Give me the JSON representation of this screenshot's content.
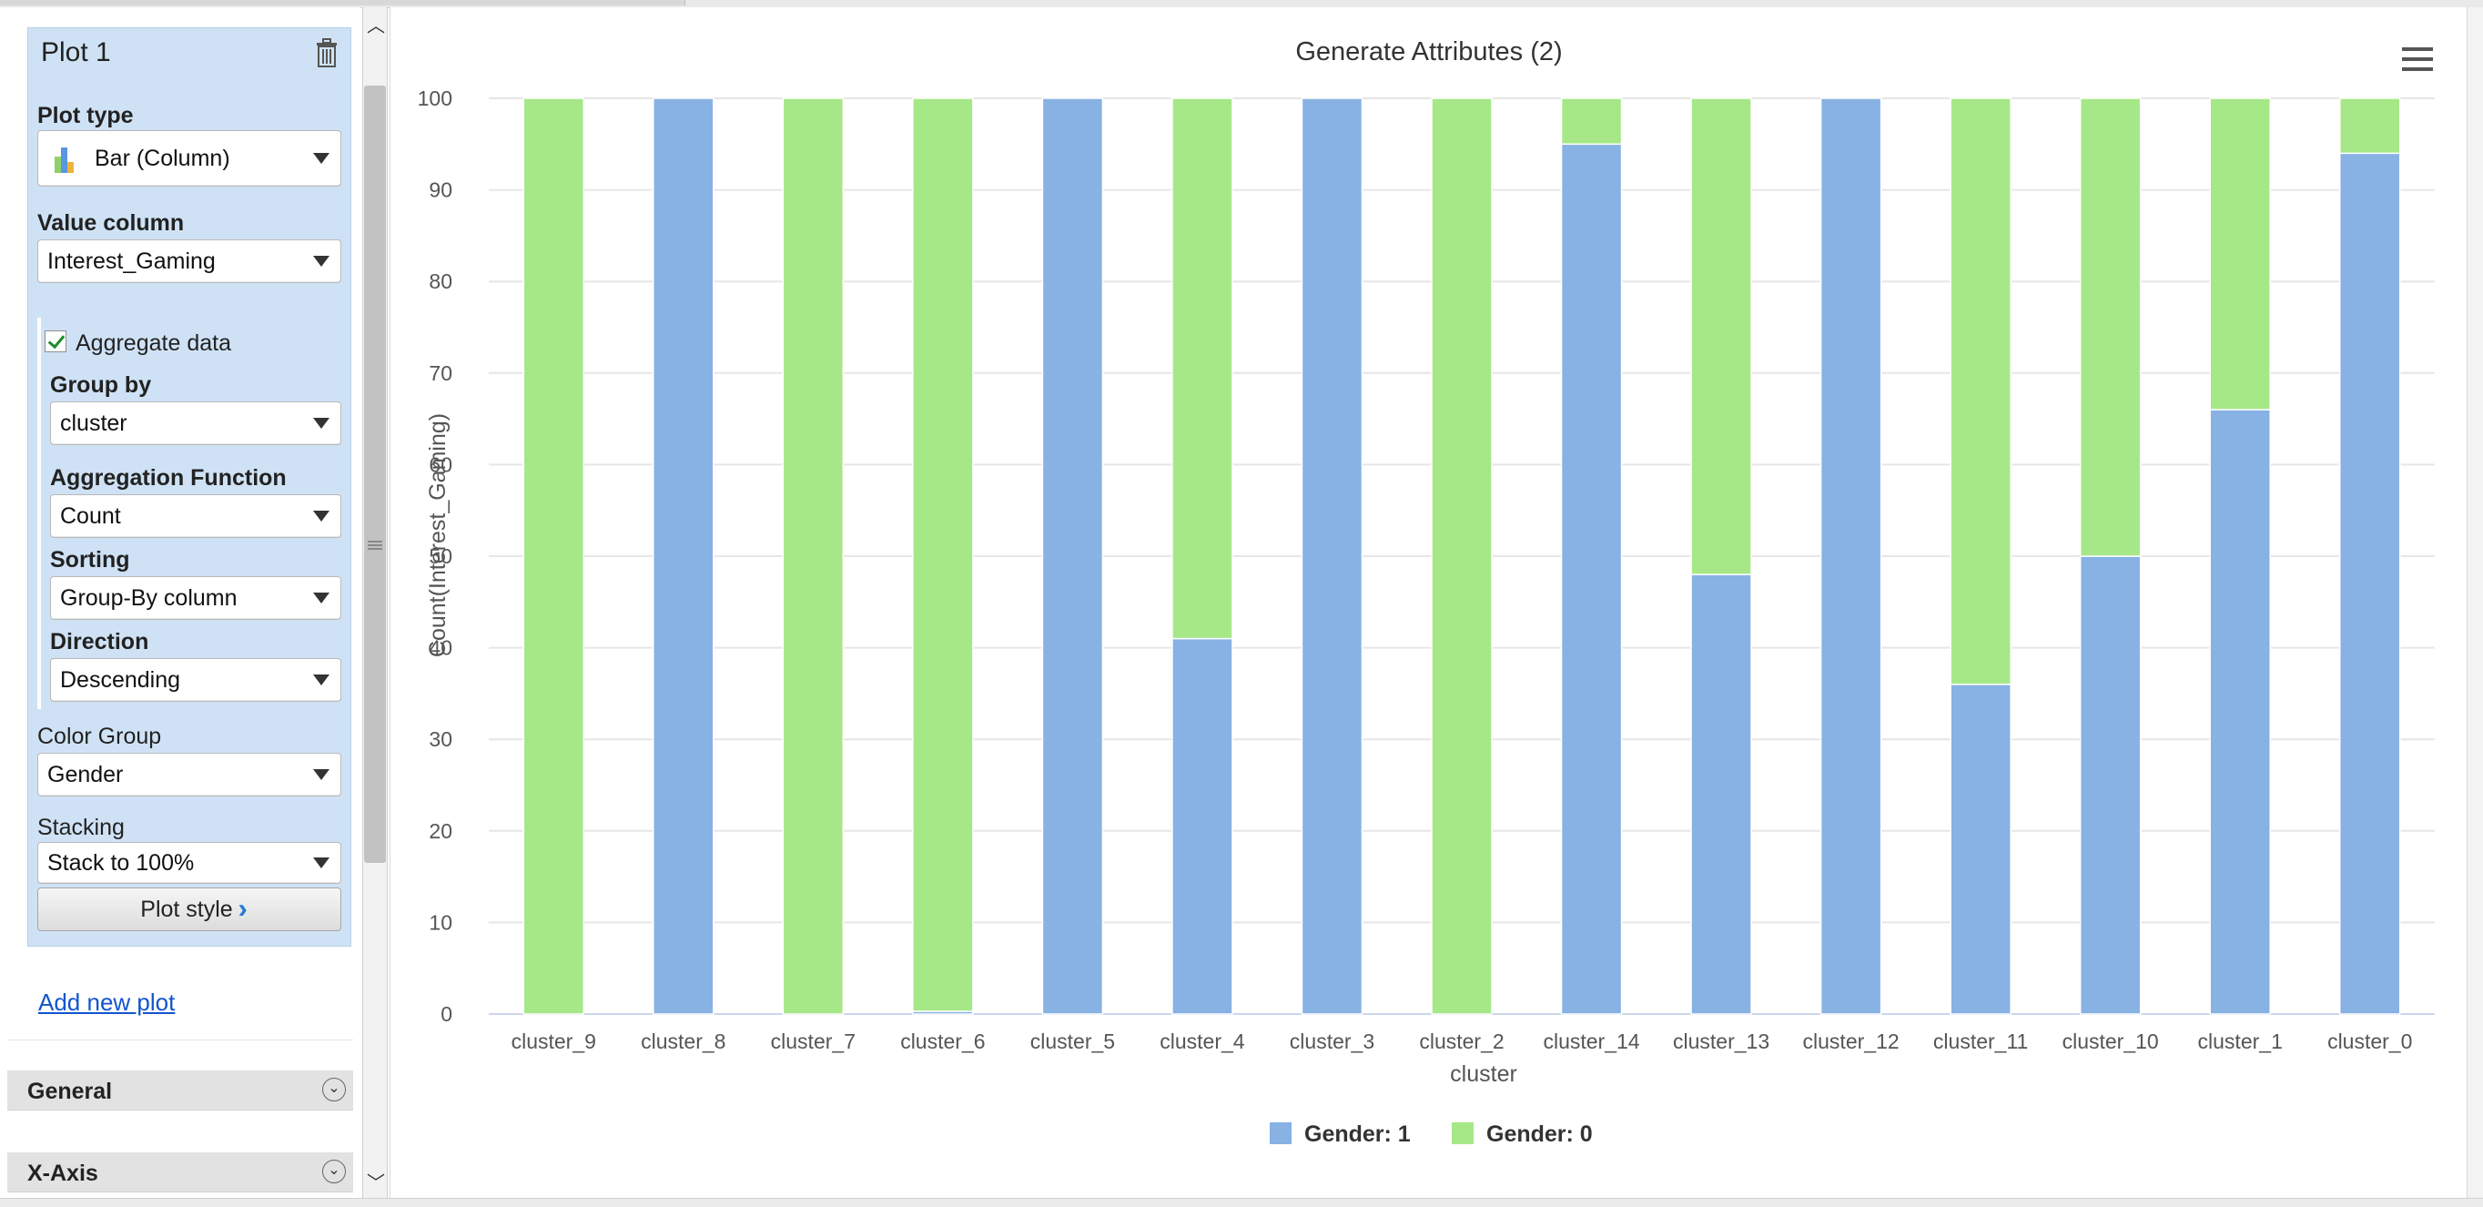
{
  "plot_panel": {
    "title": "Plot 1",
    "plot_type_label": "Plot type",
    "plot_type_value": "Bar (Column)",
    "value_column_label": "Value column",
    "value_column_value": "Interest_Gaming",
    "aggregate_label": "Aggregate data",
    "aggregate_checked": true,
    "group_by_label": "Group by",
    "group_by_value": "cluster",
    "agg_function_label": "Aggregation Function",
    "agg_function_value": "Count",
    "sorting_label": "Sorting",
    "sorting_value": "Group-By column",
    "direction_label": "Direction",
    "direction_value": "Descending",
    "color_group_label": "Color Group",
    "color_group_value": "Gender",
    "stacking_label": "Stacking",
    "stacking_value": "Stack to 100%",
    "plot_style_label": "Plot style"
  },
  "add_new_plot_label": "Add new plot",
  "sections": {
    "general": "General",
    "x_axis": "X-Axis"
  },
  "icons": {
    "trash": "trash-icon",
    "menu": "hamburger-menu-icon",
    "collapse": "collapse-double-chevron-icon"
  },
  "chart_data": {
    "type": "bar",
    "stacking": "percent",
    "title": "Generate Attributes (2)",
    "xlabel": "cluster",
    "ylabel": "Count(Interest_Gaming)",
    "ylim": [
      0,
      100
    ],
    "yticks": [
      0,
      10,
      20,
      30,
      40,
      50,
      60,
      70,
      80,
      90,
      100
    ],
    "grid": true,
    "legend_position": "bottom-center",
    "categories": [
      "cluster_9",
      "cluster_8",
      "cluster_7",
      "cluster_6",
      "cluster_5",
      "cluster_4",
      "cluster_3",
      "cluster_2",
      "cluster_14",
      "cluster_13",
      "cluster_12",
      "cluster_11",
      "cluster_10",
      "cluster_1",
      "cluster_0"
    ],
    "series": [
      {
        "name": "Gender: 1",
        "color": "#88b1e4",
        "values": [
          0,
          100,
          0,
          0.3,
          100,
          41,
          100,
          0,
          95,
          48,
          100,
          36,
          50,
          66,
          94
        ]
      },
      {
        "name": "Gender: 0",
        "color": "#a6e888",
        "values": [
          100,
          0,
          100,
          99.7,
          0,
          59,
          0,
          100,
          5,
          52,
          0,
          64,
          50,
          34,
          6
        ]
      }
    ]
  }
}
